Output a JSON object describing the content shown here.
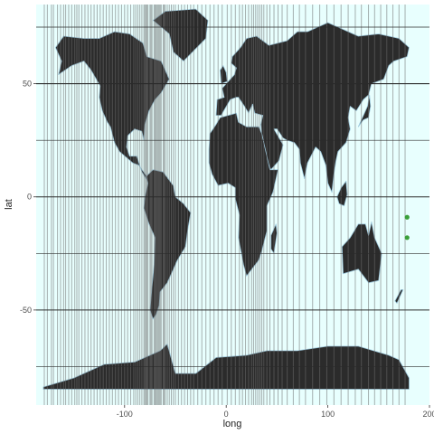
{
  "colors": {
    "panel": "#e8fffe",
    "land": "#2b2b2b",
    "borders": "#9ec9dd",
    "hline": "#2a2a2a",
    "vline": "#6e6e6e",
    "point": "#3aa03a",
    "ticks": "#4d4d4d"
  },
  "chart_data": {
    "type": "scatter",
    "title": "",
    "xlabel": "long",
    "ylabel": "lat",
    "xlim": [
      -187,
      200
    ],
    "ylim": [
      -92,
      85
    ],
    "x_ticks": [
      -100,
      0,
      100,
      200
    ],
    "y_ticks": [
      -50,
      0,
      50
    ],
    "grid": false,
    "legend": "none",
    "map_layer": "world country polygons (fill dark, outline light blue)",
    "horizontal_lines_lat": [
      -75,
      -50,
      -25,
      0,
      25,
      50,
      75
    ],
    "vertical_lines_long": [
      -179,
      -176,
      -172,
      -170,
      -166,
      -163,
      -160,
      -158,
      -155,
      -152,
      -149,
      -147,
      -145,
      -142,
      -139,
      -136,
      -133,
      -130,
      -127,
      -124,
      -121,
      -118,
      -115,
      -112,
      -109,
      -106,
      -103,
      -100,
      -97,
      -94,
      -91,
      -89,
      -87,
      -85,
      -83,
      -81,
      -80,
      -79,
      -78,
      -77,
      -75,
      -74,
      -73,
      -71,
      -70,
      -69,
      -68,
      -67,
      -66,
      -65,
      -64,
      -62,
      -61,
      -60,
      -58,
      -56,
      -54,
      -52,
      -50,
      -47,
      -44,
      -41,
      -38,
      -35,
      -32,
      -28,
      -24,
      -20,
      -16,
      -12,
      -8,
      -4,
      1,
      5,
      9,
      13,
      16,
      19,
      22,
      25,
      27,
      29,
      31,
      33,
      35,
      37,
      40,
      43,
      47,
      51,
      55,
      60,
      66,
      72,
      78,
      85,
      92,
      99,
      106,
      113,
      120,
      127,
      133,
      140,
      146,
      152,
      158,
      164,
      170,
      176
    ],
    "points": [
      {
        "long": 178,
        "lat": -9
      },
      {
        "long": 178,
        "lat": -18
      }
    ]
  }
}
